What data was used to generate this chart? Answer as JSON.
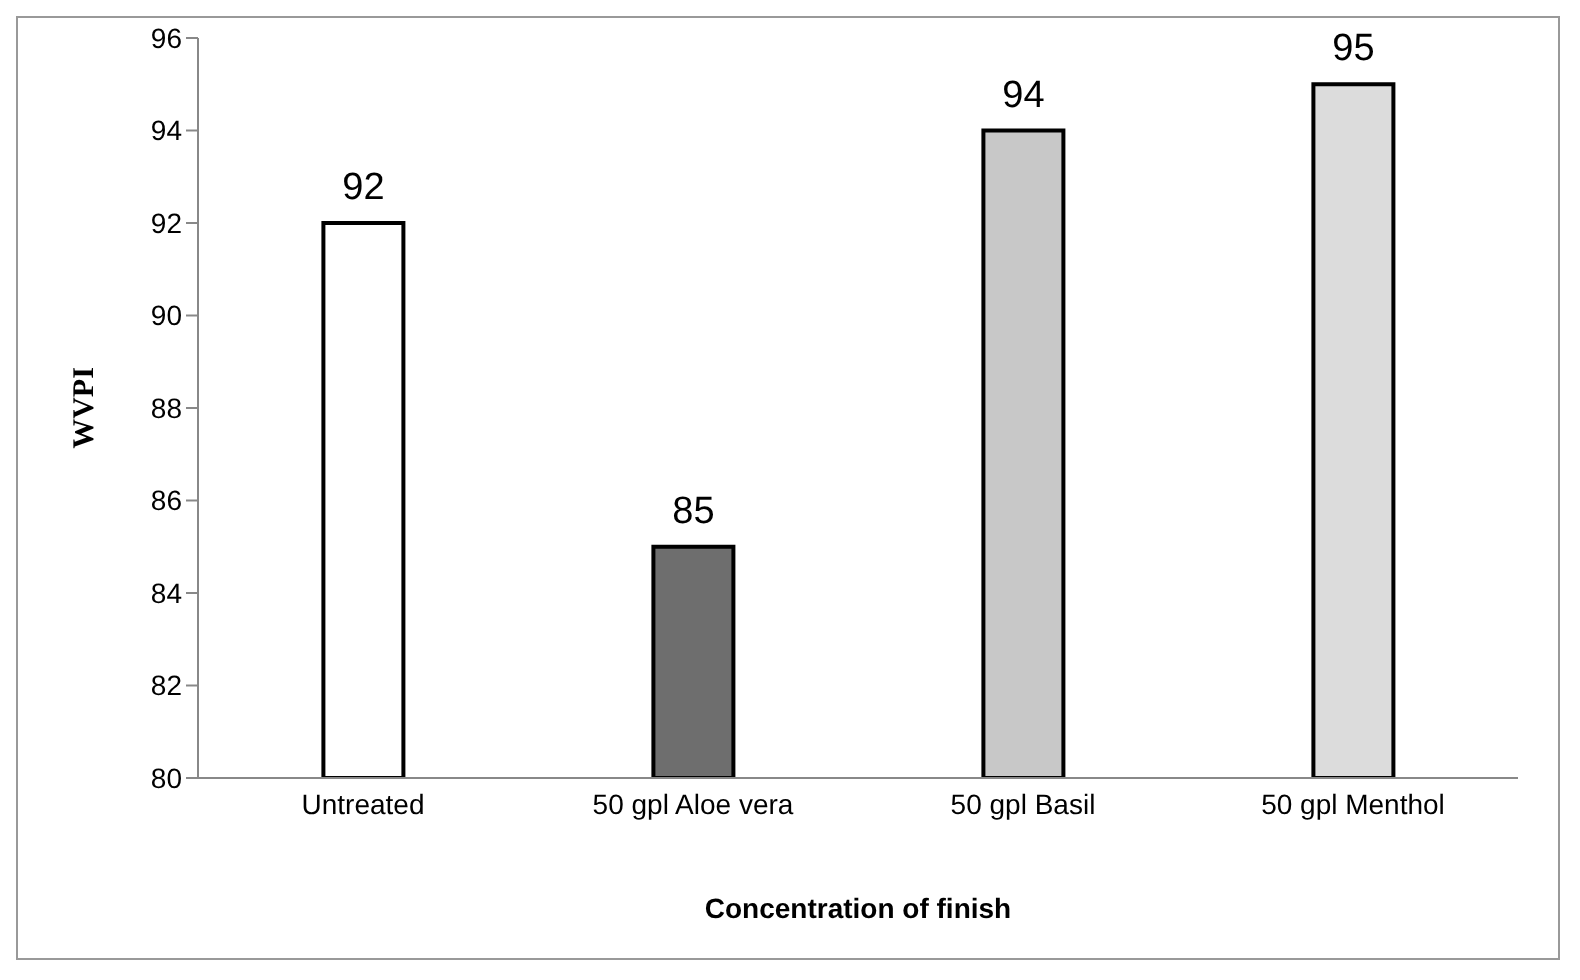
{
  "chart_data": {
    "type": "bar",
    "xlabel": "Concentration of finish",
    "ylabel": "WVPI",
    "categories": [
      "Untreated",
      "50 gpl Aloe vera",
      "50 gpl Basil",
      "50 gpl Menthol"
    ],
    "values": [
      92,
      85,
      94,
      95
    ],
    "colors": [
      "#ffffff",
      "#6e6e6e",
      "#c8c8c8",
      "#dcdcdc"
    ],
    "ylim": [
      80,
      96
    ],
    "yticks": [
      80,
      82,
      84,
      86,
      88,
      90,
      92,
      94,
      96
    ],
    "grid": false,
    "data_labels": true
  }
}
